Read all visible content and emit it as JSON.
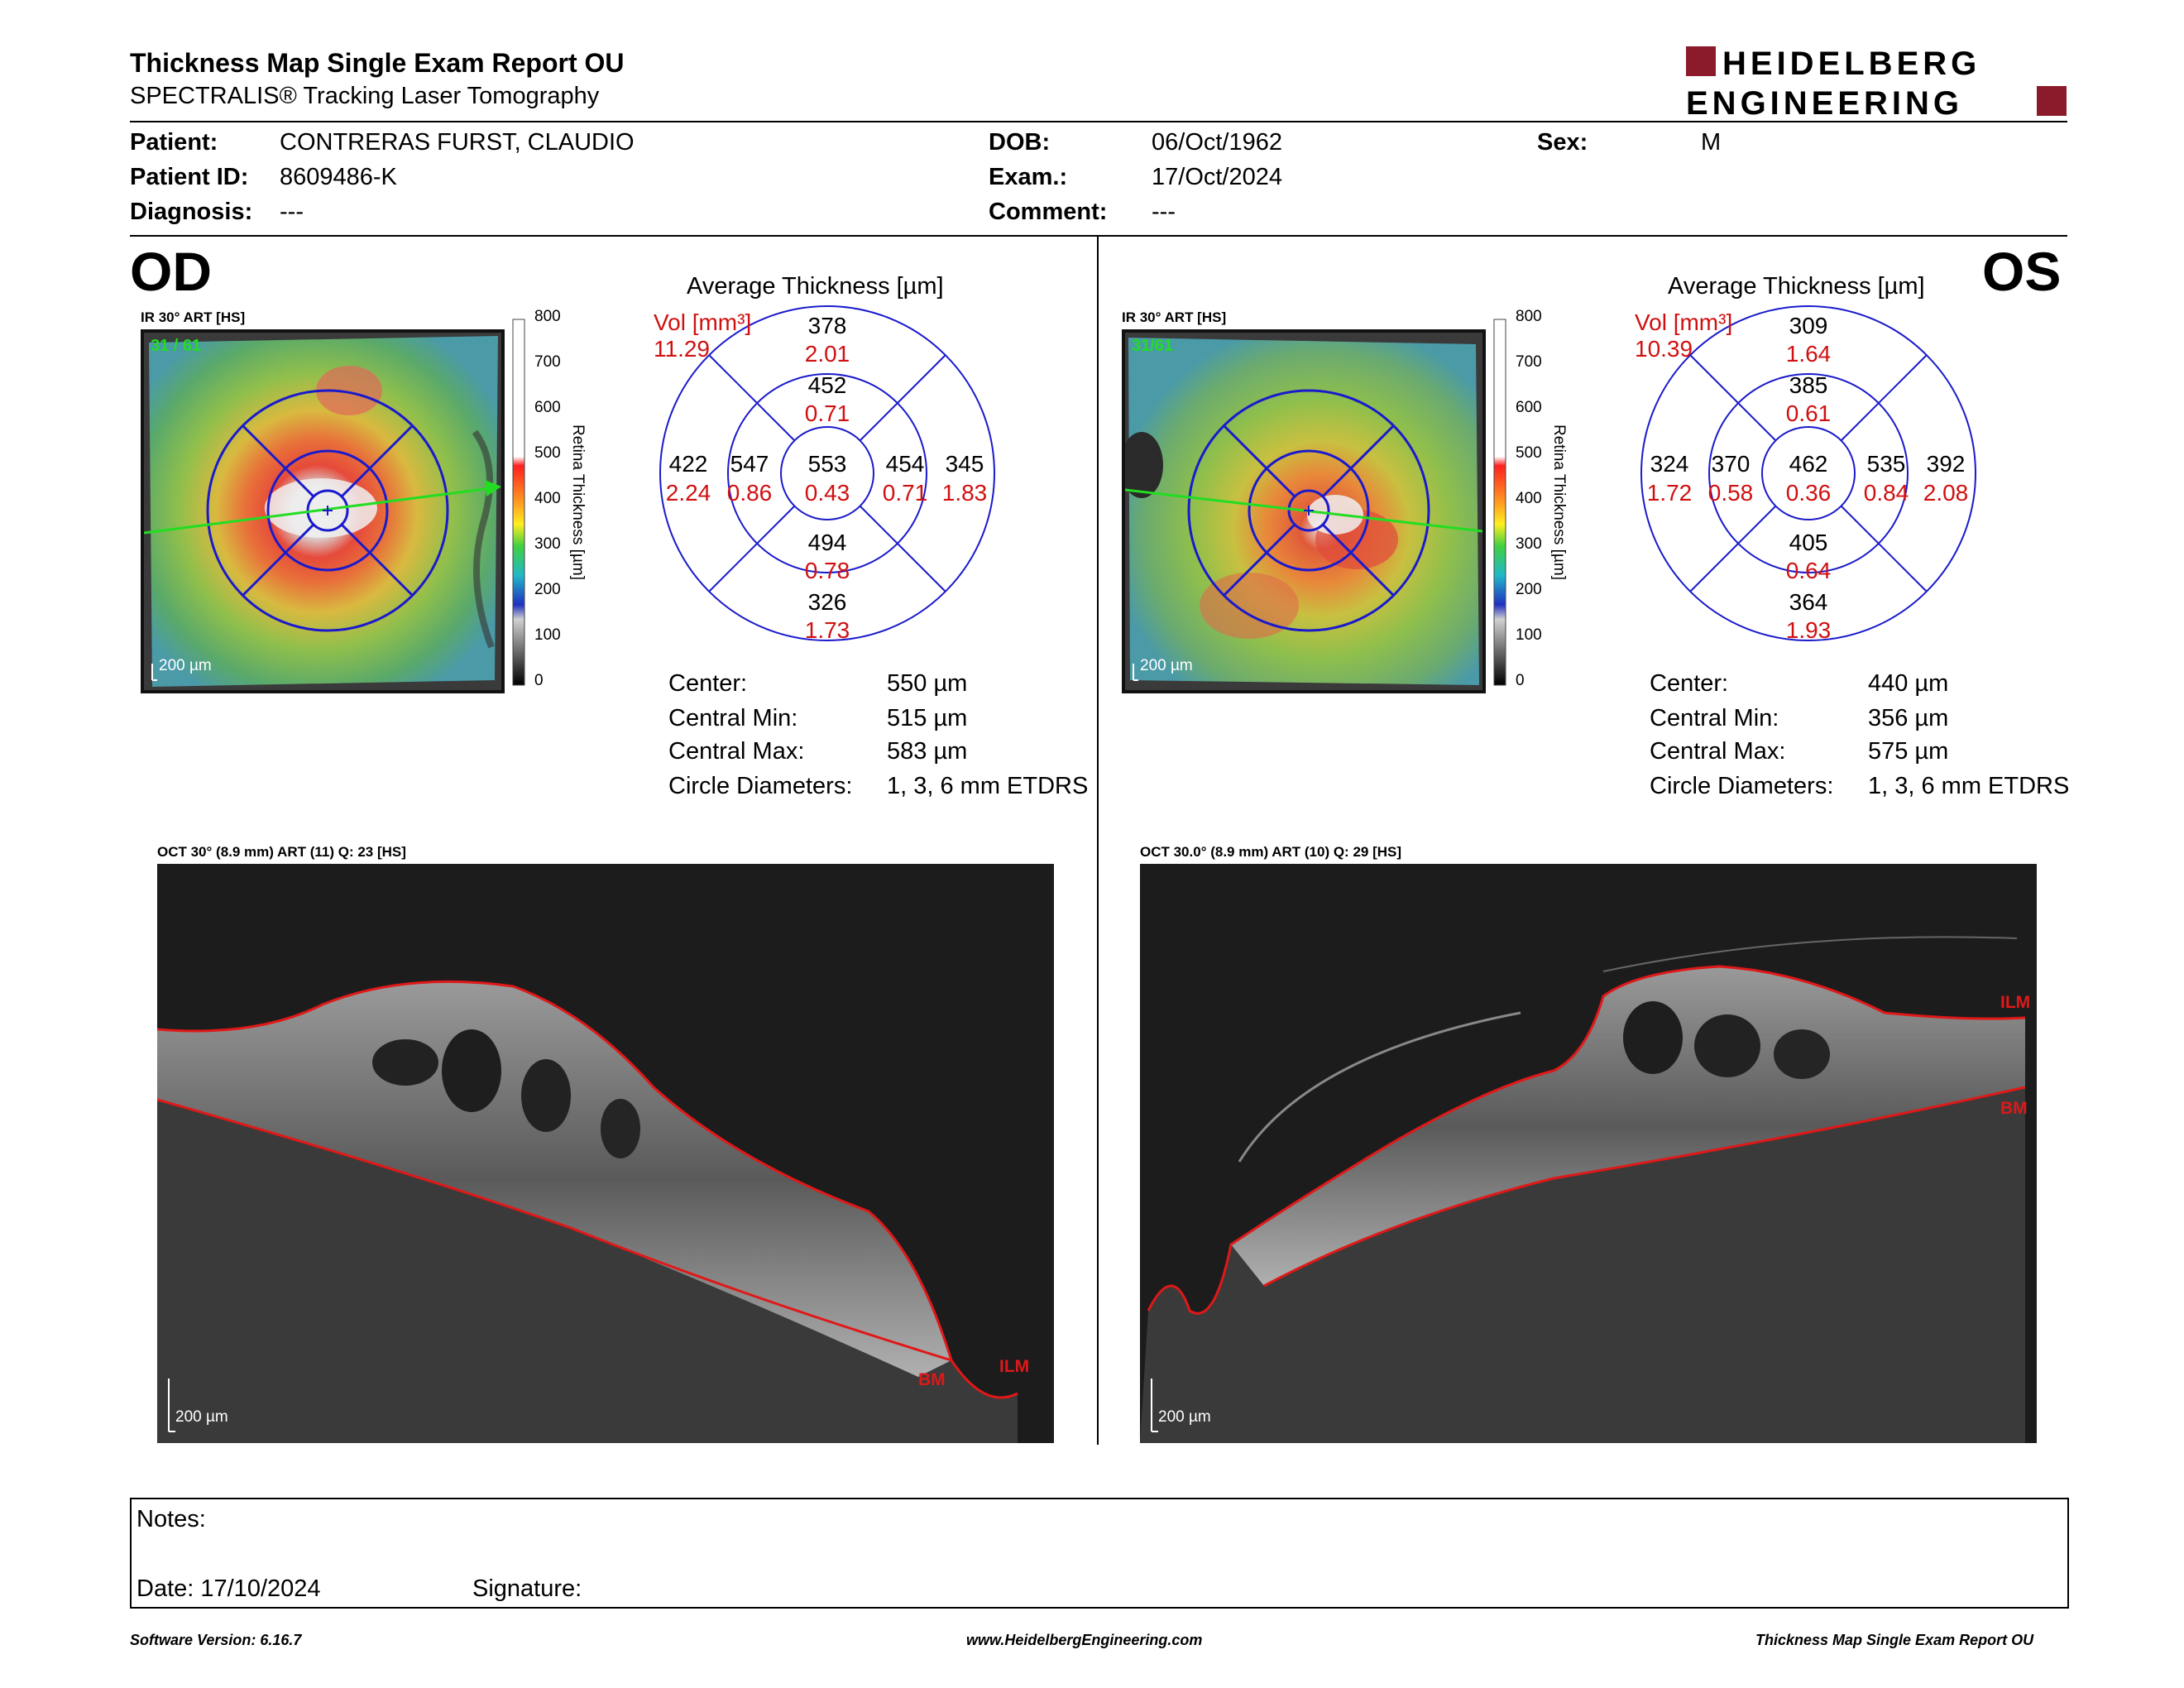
{
  "report": {
    "title": "Thickness Map Single Exam Report OU",
    "subtitle": "SPECTRALIS® Tracking Laser Tomography",
    "logo_line1": "HEIDELBERG",
    "logo_line2": "ENGINEERING",
    "brand_color": "#8b1a2b"
  },
  "patient": {
    "patient_label": "Patient:",
    "patient_value": "CONTRERAS  FURST, CLAUDIO",
    "id_label": "Patient ID:",
    "id_value": "8609486-K",
    "diagnosis_label": "Diagnosis:",
    "diagnosis_value": "---",
    "dob_label": "DOB:",
    "dob_value": "06/Oct/1962",
    "exam_label": "Exam.:",
    "exam_value": "17/Oct/2024",
    "comment_label": "Comment:",
    "comment_value": "---",
    "sex_label": "Sex:",
    "sex_value": "M"
  },
  "scale": {
    "ticks": [
      "800",
      "700",
      "600",
      "500",
      "400",
      "300",
      "200",
      "100",
      "0"
    ],
    "axis_title": "Retina  Thickness [µm]"
  },
  "od": {
    "eye": "OD",
    "map_caption": "IR 30° ART [HS]",
    "map_counter": "31 / 61",
    "map_scalebar": "200 µm",
    "avg_title": "Average Thickness [µm]",
    "vol_label": "Vol [mm³]",
    "vol_total": "11.29",
    "grid": {
      "outer_superior": [
        "378",
        "2.01"
      ],
      "inner_superior": [
        "452",
        "0.71"
      ],
      "outer_temporal": [
        "422",
        "2.24"
      ],
      "inner_temporal": [
        "547",
        "0.86"
      ],
      "center": [
        "553",
        "0.43"
      ],
      "inner_nasal": [
        "454",
        "0.71"
      ],
      "outer_nasal": [
        "345",
        "1.83"
      ],
      "inner_inferior": [
        "494",
        "0.78"
      ],
      "outer_inferior": [
        "326",
        "1.73"
      ]
    },
    "stats": [
      [
        "Center:",
        "550 µm"
      ],
      [
        "Central Min:",
        "515 µm"
      ],
      [
        "Central Max:",
        "583 µm"
      ],
      [
        "Circle Diameters:",
        "1, 3, 6 mm ETDRS"
      ]
    ],
    "oct_caption": "OCT 30° (8.9 mm) ART (11) Q: 23 [HS]",
    "oct_scalebar": "200 µm",
    "oct_ilm": "ILM",
    "oct_bm": "BM"
  },
  "os": {
    "eye": "OS",
    "map_caption": "IR 30° ART [HS]",
    "map_counter": "31/61",
    "map_scalebar": "200 µm",
    "avg_title": "Average Thickness [µm]",
    "vol_label": "Vol [mm³]",
    "vol_total": "10.39",
    "grid": {
      "outer_superior": [
        "309",
        "1.64"
      ],
      "inner_superior": [
        "385",
        "0.61"
      ],
      "outer_temporal": [
        "324",
        "1.72"
      ],
      "inner_temporal": [
        "370",
        "0.58"
      ],
      "center": [
        "462",
        "0.36"
      ],
      "inner_nasal": [
        "535",
        "0.84"
      ],
      "outer_nasal": [
        "392",
        "2.08"
      ],
      "inner_inferior": [
        "405",
        "0.64"
      ],
      "outer_inferior": [
        "364",
        "1.93"
      ]
    },
    "stats": [
      [
        "Center:",
        "440 µm"
      ],
      [
        "Central Min:",
        "356 µm"
      ],
      [
        "Central Max:",
        "575 µm"
      ],
      [
        "Circle Diameters:",
        "1, 3, 6 mm ETDRS"
      ]
    ],
    "oct_caption": "OCT 30.0° (8.9 mm) ART (10) Q: 29 [HS]",
    "oct_scalebar": "200 µm",
    "oct_ilm": "ILM",
    "oct_bm": "BM"
  },
  "notes": {
    "notes_label": "Notes:",
    "date_label": "Date: 17/10/2024",
    "signature_label": "Signature:"
  },
  "footer": {
    "software": "Software Version: 6.16.7",
    "website": "www.HeidelbergEngineering.com",
    "report_name": "Thickness Map Single Exam Report OU"
  }
}
